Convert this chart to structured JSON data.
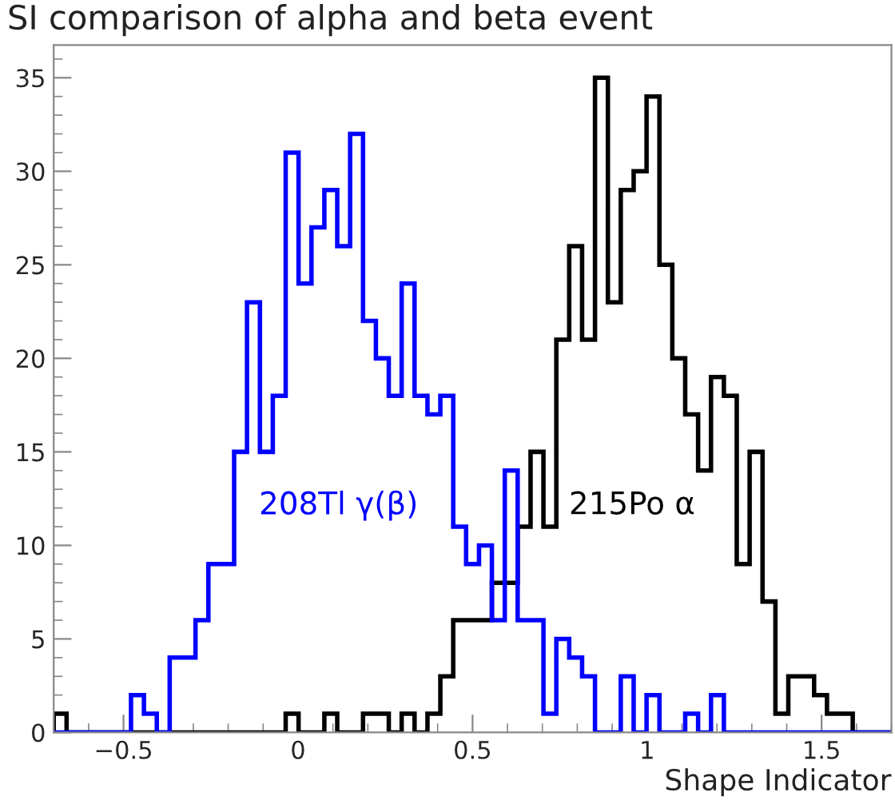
{
  "chart_data": {
    "type": "histogram",
    "title": "SI comparison of alpha and beta event",
    "xlabel": "Shape Indicator",
    "bins": [
      -0.7,
      -0.6631,
      -0.6262,
      -0.5892,
      -0.5523,
      -0.5154,
      -0.4785,
      -0.4415,
      -0.4046,
      -0.3677,
      -0.3308,
      -0.2938,
      -0.2569,
      -0.22,
      -0.1831,
      -0.1462,
      -0.1092,
      -0.0723,
      -0.0354,
      0.0015,
      0.0385,
      0.0754,
      0.1123,
      0.1492,
      0.1862,
      0.2231,
      0.26,
      0.2969,
      0.3338,
      0.3708,
      0.4077,
      0.4446,
      0.4815,
      0.5185,
      0.5554,
      0.5923,
      0.6292,
      0.6662,
      0.7031,
      0.74,
      0.7769,
      0.8138,
      0.8508,
      0.8877,
      0.9246,
      0.9615,
      0.9985,
      1.0354,
      1.0723,
      1.1092,
      1.1462,
      1.1831,
      1.22,
      1.2569,
      1.2938,
      1.3308,
      1.3677,
      1.4046,
      1.4415,
      1.4785,
      1.5154,
      1.5523,
      1.5892,
      1.6262,
      1.6631,
      1.7
    ],
    "series": [
      {
        "name": "215Po α",
        "color": "#000000",
        "values": [
          1,
          0,
          0,
          0,
          0,
          0,
          0,
          0,
          0,
          0,
          0,
          0,
          0,
          0,
          0,
          0,
          0,
          0,
          1,
          0,
          0,
          1,
          0,
          0,
          1,
          1,
          0,
          1,
          0,
          1,
          3,
          6,
          6,
          6,
          8,
          8,
          11,
          15,
          11,
          21,
          26,
          21,
          35,
          23,
          29,
          30,
          34,
          25,
          20,
          17,
          14,
          19,
          18,
          9,
          15,
          7,
          1,
          3,
          3,
          2,
          1,
          1,
          0,
          0,
          0
        ]
      },
      {
        "name": "208Tl γ(β)",
        "color": "#0000ff",
        "values": [
          0,
          0,
          0,
          0,
          0,
          0,
          2,
          1,
          0,
          4,
          4,
          6,
          9,
          9,
          15,
          23,
          15,
          18,
          31,
          24,
          27,
          29,
          26,
          32,
          22,
          20,
          18,
          24,
          18,
          17,
          18,
          11,
          9,
          10,
          6,
          14,
          6,
          6,
          1,
          5,
          4,
          3,
          0,
          0,
          3,
          0,
          2,
          0,
          0,
          1,
          0,
          2,
          0,
          0,
          0,
          0,
          0,
          0,
          0,
          0,
          0,
          0,
          0,
          0,
          0
        ]
      }
    ],
    "xlim": [
      -0.7,
      1.7
    ],
    "ylim": [
      0,
      36.75
    ],
    "xticks": [
      {
        "value": -0.5,
        "label": "−0.5"
      },
      0,
      0.5,
      1,
      1.5
    ],
    "yticks": [
      0,
      5,
      10,
      15,
      20,
      25,
      30,
      35
    ]
  }
}
